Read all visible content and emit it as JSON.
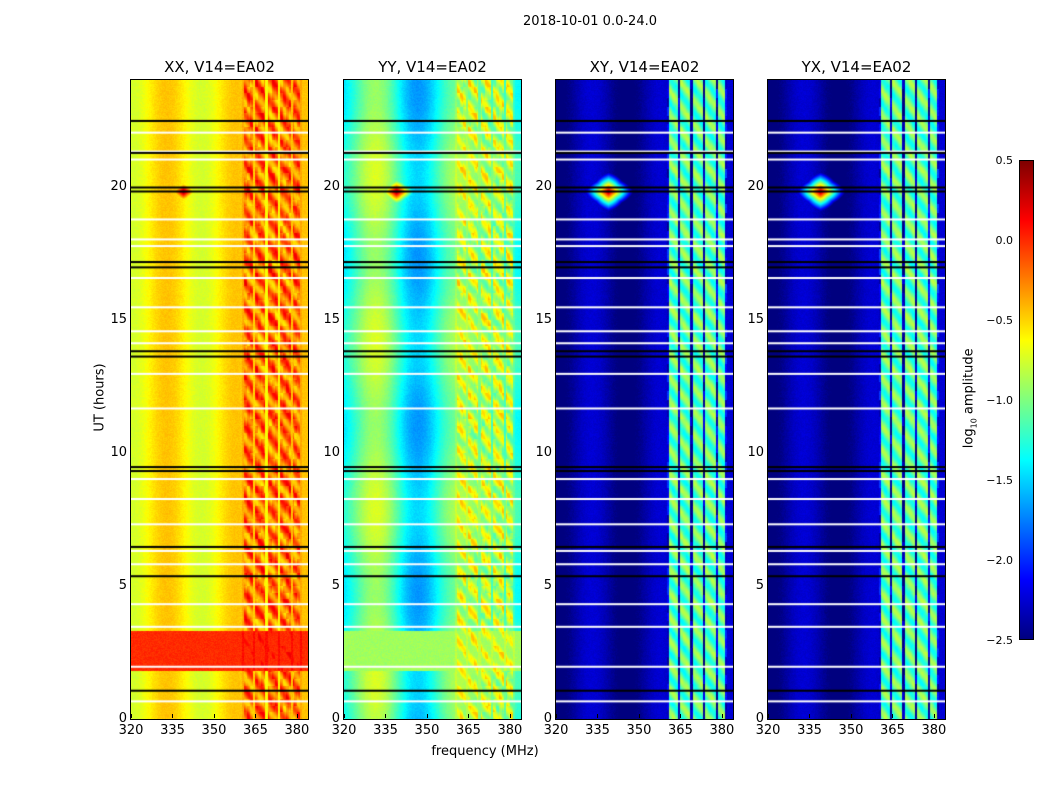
{
  "chart_data": {
    "type": "heatmap",
    "title": "2018-10-01 0.0-24.0",
    "xlabel": "frequency (MHz)",
    "ylabel": "UT (hours)",
    "xlim": [
      320,
      384
    ],
    "ylim": [
      0,
      24
    ],
    "xticks": [
      320,
      335,
      350,
      365,
      380
    ],
    "yticks": [
      0,
      5,
      10,
      15,
      20
    ],
    "colorbar": {
      "label": "log10 amplitude",
      "label_main": "log",
      "label_sub": "10",
      "label_rest": " amplitude",
      "range": [
        -2.5,
        0.5
      ],
      "ticks": [
        "0.5",
        "0.0",
        "−0.5",
        "−1.0",
        "−1.5",
        "−2.0",
        "−2.5"
      ],
      "tick_values": [
        0.5,
        0.0,
        -0.5,
        -1.0,
        -1.5,
        -2.0,
        -2.5
      ],
      "colormap": "jet"
    },
    "panels": [
      {
        "title": "XX, V14=EA02",
        "base": -0.6,
        "rfi_level": -0.1,
        "burst": {
          "freq": 339,
          "hour": 19.8,
          "peak": 0.5
        },
        "high_block": {
          "hours": [
            1.8,
            3.3
          ],
          "level": 0.0
        }
      },
      {
        "title": "YY, V14=EA02",
        "base": -1.2,
        "rfi_level": -0.7,
        "burst": {
          "freq": 339,
          "hour": 19.8,
          "peak": 0.5
        },
        "high_block": {
          "hours": [
            1.8,
            3.3
          ],
          "level": -0.9
        }
      },
      {
        "title": "XY, V14=EA02",
        "base": -2.4,
        "rfi_level": -0.9,
        "burst": {
          "freq": 339,
          "hour": 19.8,
          "peak": 0.4
        },
        "high_block": null
      },
      {
        "title": "YX, V14=EA02",
        "base": -2.4,
        "rfi_level": -0.9,
        "burst": {
          "freq": 339,
          "hour": 19.8,
          "peak": 0.4
        },
        "high_block": null
      }
    ],
    "rfi_bands_mhz": [
      [
        361,
        364
      ],
      [
        365,
        368.5
      ],
      [
        369.5,
        373
      ],
      [
        374,
        378
      ],
      [
        378.5,
        381
      ]
    ],
    "flagged_rows_white_hours": [
      22.06,
      21.35,
      21.05,
      18.8,
      18.05,
      17.8,
      16.6,
      15.5,
      14.6,
      14.15,
      13.0,
      11.7,
      9.05,
      8.3,
      7.35,
      6.35,
      5.85,
      4.35,
      3.5,
      2.0,
      0.7
    ],
    "flagged_rows_black_hours": [
      22.5,
      21.3,
      20.0,
      19.85,
      17.2,
      17.0,
      13.85,
      13.65,
      9.5,
      9.35,
      6.5,
      5.4,
      1.1
    ]
  }
}
